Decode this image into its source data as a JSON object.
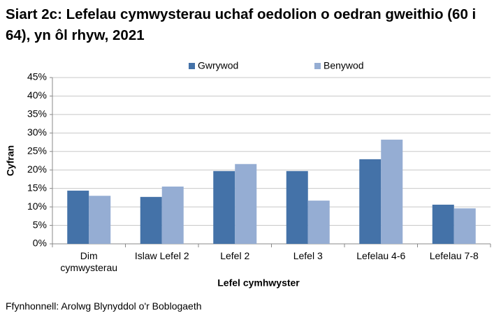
{
  "chart_data": {
    "type": "bar",
    "title": "Siart 2c: Lefelau cymwysterau uchaf oedolion o oedran gweithio (60 i 64), yn ôl rhyw, 2021",
    "categories": [
      "Dim cymwysterau",
      "Islaw Lefel 2",
      "Lefel 2",
      "Lefel 3",
      "Lefelau 4-6",
      "Lefelau 7-8"
    ],
    "series": [
      {
        "name": "Gwrywod",
        "color": "#4472a8",
        "values": [
          14.4,
          12.7,
          19.7,
          19.7,
          22.9,
          10.6
        ]
      },
      {
        "name": "Benywod",
        "color": "#95add3",
        "values": [
          13.0,
          15.5,
          21.6,
          11.7,
          28.2,
          9.6
        ]
      }
    ],
    "x_label": "Lefel cymhwyster",
    "y_label": "Cyfran",
    "ylim": [
      0,
      45
    ],
    "yticks": [
      {
        "value": 0,
        "label": "0%"
      },
      {
        "value": 5,
        "label": "5%"
      },
      {
        "value": 10,
        "label": "10%"
      },
      {
        "value": 15,
        "label": "15%"
      },
      {
        "value": 20,
        "label": "20%"
      },
      {
        "value": 25,
        "label": "25%"
      },
      {
        "value": 30,
        "label": "30%"
      },
      {
        "value": 35,
        "label": "35%"
      },
      {
        "value": 40,
        "label": "40%"
      },
      {
        "value": 45,
        "label": "45%"
      }
    ],
    "grid": true,
    "legend": "top",
    "source": "Ffynhonnell: Arolwg Blynyddol o'r Boblogaeth"
  }
}
